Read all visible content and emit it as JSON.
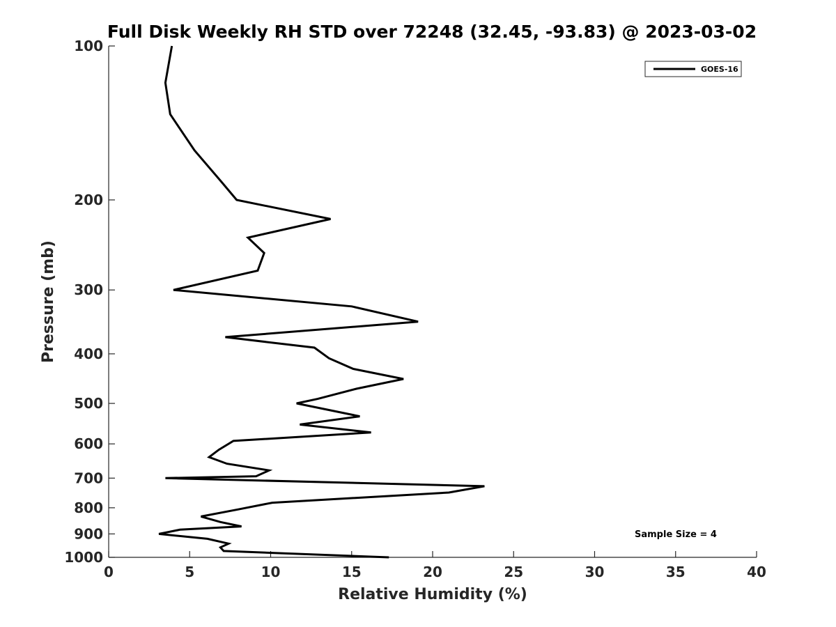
{
  "chart_data": {
    "type": "line",
    "title": "Full Disk Weekly RH STD over 72248 (32.45, -93.83) @ 2023-03-02",
    "xlabel": "Relative Humidity (%)",
    "ylabel": "Pressure (mb)",
    "xlim": [
      0,
      40
    ],
    "ylim": [
      100,
      1000
    ],
    "yscale": "log",
    "y_reversed": true,
    "grid": false,
    "x_ticks": [
      0,
      5,
      10,
      15,
      20,
      25,
      30,
      35,
      40
    ],
    "x_tick_labels": [
      "0",
      "5",
      "10",
      "15",
      "20",
      "25",
      "30",
      "35",
      "40"
    ],
    "y_ticks": [
      100,
      200,
      300,
      400,
      500,
      600,
      700,
      800,
      900,
      1000
    ],
    "y_tick_labels": [
      "100",
      "200",
      "300",
      "400",
      "500",
      "600",
      "700",
      "800",
      "900",
      "1000"
    ],
    "legend_position": "top-right",
    "annotation": "Sample Size = 4",
    "series": [
      {
        "name": "GOES-16",
        "color": "#000000",
        "points": [
          [
            3.9,
            100
          ],
          [
            3.5,
            118
          ],
          [
            3.8,
            136
          ],
          [
            5.3,
            160
          ],
          [
            7.0,
            185
          ],
          [
            7.9,
            200
          ],
          [
            13.7,
            218
          ],
          [
            8.6,
            237
          ],
          [
            9.6,
            254
          ],
          [
            9.2,
            275
          ],
          [
            4.0,
            300
          ],
          [
            15.0,
            323
          ],
          [
            19.1,
            346
          ],
          [
            7.2,
            371
          ],
          [
            12.7,
            389
          ],
          [
            13.6,
            408
          ],
          [
            15.1,
            428
          ],
          [
            18.2,
            448
          ],
          [
            15.3,
            468
          ],
          [
            12.9,
            490
          ],
          [
            11.6,
            500
          ],
          [
            15.5,
            530
          ],
          [
            11.8,
            550
          ],
          [
            16.2,
            570
          ],
          [
            7.7,
            592
          ],
          [
            6.8,
            616
          ],
          [
            6.2,
            637
          ],
          [
            7.3,
            656
          ],
          [
            9.9,
            676
          ],
          [
            9.1,
            694
          ],
          [
            3.5,
            700
          ],
          [
            23.2,
            726
          ],
          [
            21.0,
            747
          ],
          [
            10.1,
            782
          ],
          [
            8.0,
            806
          ],
          [
            5.7,
            832
          ],
          [
            6.9,
            853
          ],
          [
            8.2,
            870
          ],
          [
            4.4,
            883
          ],
          [
            3.1,
            900
          ],
          [
            6.1,
            920
          ],
          [
            7.4,
            940
          ],
          [
            6.9,
            956
          ],
          [
            7.1,
            972
          ],
          [
            17.3,
            1000
          ]
        ]
      }
    ]
  }
}
